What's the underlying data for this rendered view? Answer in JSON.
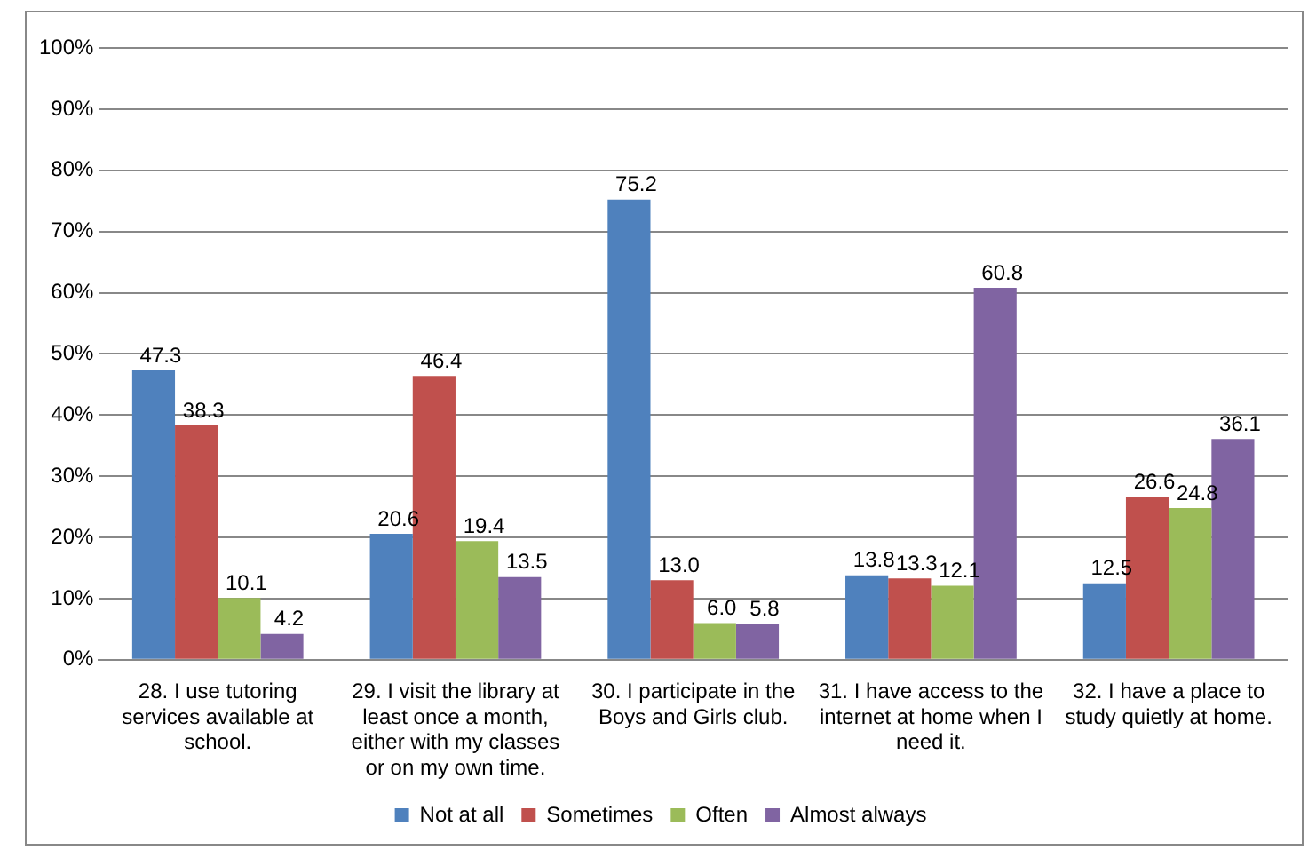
{
  "chart_data": {
    "type": "bar",
    "categories": [
      "28. I use tutoring services available at school.",
      "29. I visit the library at least once a month, either with my classes or on my own time.",
      "30. I participate in the Boys and Girls club.",
      "31. I have access to the internet at home when I need it.",
      "32. I have a place to study quietly at home."
    ],
    "series": [
      {
        "name": "Not at all",
        "color": "#4f81bd",
        "values": [
          47.3,
          20.6,
          75.2,
          13.8,
          12.5
        ],
        "value_labels": [
          "47.3",
          "20.6",
          "75.2",
          "13.8",
          "12.5"
        ]
      },
      {
        "name": "Sometimes",
        "color": "#c0504d",
        "values": [
          38.3,
          46.4,
          13.0,
          13.3,
          26.6
        ],
        "value_labels": [
          "38.3",
          "46.4",
          "13.0",
          "13.3",
          "26.6"
        ]
      },
      {
        "name": "Often",
        "color": "#9bbb59",
        "values": [
          10.1,
          19.4,
          6.0,
          12.1,
          24.8
        ],
        "value_labels": [
          "10.1",
          "19.4",
          "6.0",
          "12.1",
          "24.8"
        ]
      },
      {
        "name": "Almost always",
        "color": "#8064a2",
        "values": [
          4.2,
          13.5,
          5.8,
          60.8,
          36.1
        ],
        "value_labels": [
          "4.2",
          "13.5",
          "5.8",
          "60.8",
          "36.1"
        ]
      }
    ],
    "ylim": [
      0,
      100
    ],
    "yticks": [
      {
        "value": 0,
        "label": "0%"
      },
      {
        "value": 10,
        "label": "10%"
      },
      {
        "value": 20,
        "label": "20%"
      },
      {
        "value": 30,
        "label": "30%"
      },
      {
        "value": 40,
        "label": "40%"
      },
      {
        "value": 50,
        "label": "50%"
      },
      {
        "value": 60,
        "label": "60%"
      },
      {
        "value": 70,
        "label": "70%"
      },
      {
        "value": 80,
        "label": "80%"
      },
      {
        "value": 90,
        "label": "90%"
      },
      {
        "value": 100,
        "label": "100%"
      }
    ],
    "grid": "y",
    "legend": "bottom"
  }
}
